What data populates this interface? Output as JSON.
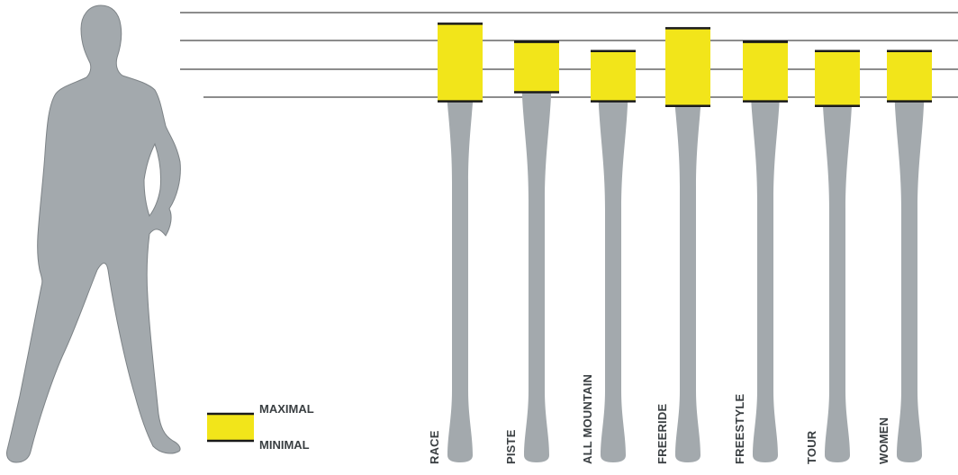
{
  "colors": {
    "ski": "#a3a9ad",
    "figure": "#a3a9ad",
    "range_fill": "#f2e51a",
    "line": "#1a1a1a",
    "text": "#3a3f42"
  },
  "legend": {
    "max_label": "MAXIMAL",
    "min_label": "MINIMAL"
  },
  "skis": [
    {
      "label": "RACE",
      "length_range": [
        0.96,
        0.79
      ]
    },
    {
      "label": "PISTE",
      "length_range": [
        0.92,
        0.81
      ]
    },
    {
      "label": "ALL MOUNTAIN",
      "length_range": [
        0.9,
        0.79
      ]
    },
    {
      "label": "FREERIDE",
      "length_range": [
        0.95,
        0.78
      ]
    },
    {
      "label": "FREESTYLE",
      "length_range": [
        0.92,
        0.79
      ]
    },
    {
      "label": "TOUR",
      "length_range": [
        0.9,
        0.78
      ]
    },
    {
      "label": "WOMEN",
      "length_range": [
        0.9,
        0.79
      ]
    }
  ]
}
